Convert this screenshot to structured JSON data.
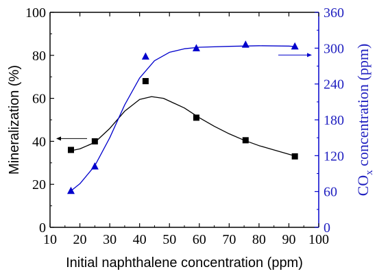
{
  "chart_data": {
    "type": "scatter",
    "xlabel": "Initial naphthalene concentration (ppm)",
    "ylabel_left": "Mineralization (%)",
    "ylabel_right_parts": [
      "CO",
      "x",
      " concentration (ppm)"
    ],
    "xlim": [
      10,
      100
    ],
    "ylim_left": [
      0,
      100
    ],
    "ylim_right": [
      0,
      360
    ],
    "x_ticks": [
      "10",
      "20",
      "30",
      "40",
      "50",
      "60",
      "70",
      "80",
      "90",
      "100"
    ],
    "y_left_ticks": [
      "0",
      "20",
      "40",
      "60",
      "80",
      "100"
    ],
    "y_right_ticks": [
      "0",
      "60",
      "120",
      "180",
      "240",
      "300",
      "360"
    ],
    "grid": false,
    "series": [
      {
        "axis": "left",
        "marker": "square",
        "color": "#000000",
        "points": [
          [
            17,
            36
          ],
          [
            25,
            40
          ],
          [
            42,
            68
          ],
          [
            59,
            51
          ],
          [
            75.5,
            40.5
          ],
          [
            92,
            33
          ]
        ],
        "fit_curve": [
          [
            16.5,
            35.5
          ],
          [
            20,
            36.5
          ],
          [
            25,
            39.5
          ],
          [
            30,
            46
          ],
          [
            35,
            54
          ],
          [
            40,
            59.5
          ],
          [
            44,
            60.8
          ],
          [
            48,
            60
          ],
          [
            55,
            55.5
          ],
          [
            60,
            51
          ],
          [
            65,
            47
          ],
          [
            70,
            43.5
          ],
          [
            75,
            40.5
          ],
          [
            80,
            38
          ],
          [
            85,
            36
          ],
          [
            90,
            34
          ],
          [
            92.5,
            33
          ]
        ]
      },
      {
        "axis": "right",
        "marker": "triangle",
        "color": "#0000cc",
        "points": [
          [
            17,
            61
          ],
          [
            25,
            102
          ],
          [
            42,
            286
          ],
          [
            59,
            300
          ],
          [
            75.5,
            306
          ],
          [
            92,
            303
          ]
        ],
        "fit_curve": [
          [
            17,
            61
          ],
          [
            20,
            73
          ],
          [
            25,
            103
          ],
          [
            30,
            150
          ],
          [
            35,
            205
          ],
          [
            40,
            250
          ],
          [
            45,
            279
          ],
          [
            50,
            293
          ],
          [
            55,
            299
          ],
          [
            60,
            301.5
          ],
          [
            70,
            303
          ],
          [
            80,
            304
          ],
          [
            90,
            303.5
          ],
          [
            92.5,
            302.5
          ]
        ]
      }
    ],
    "indicator_arrows": [
      "left",
      "right"
    ]
  }
}
